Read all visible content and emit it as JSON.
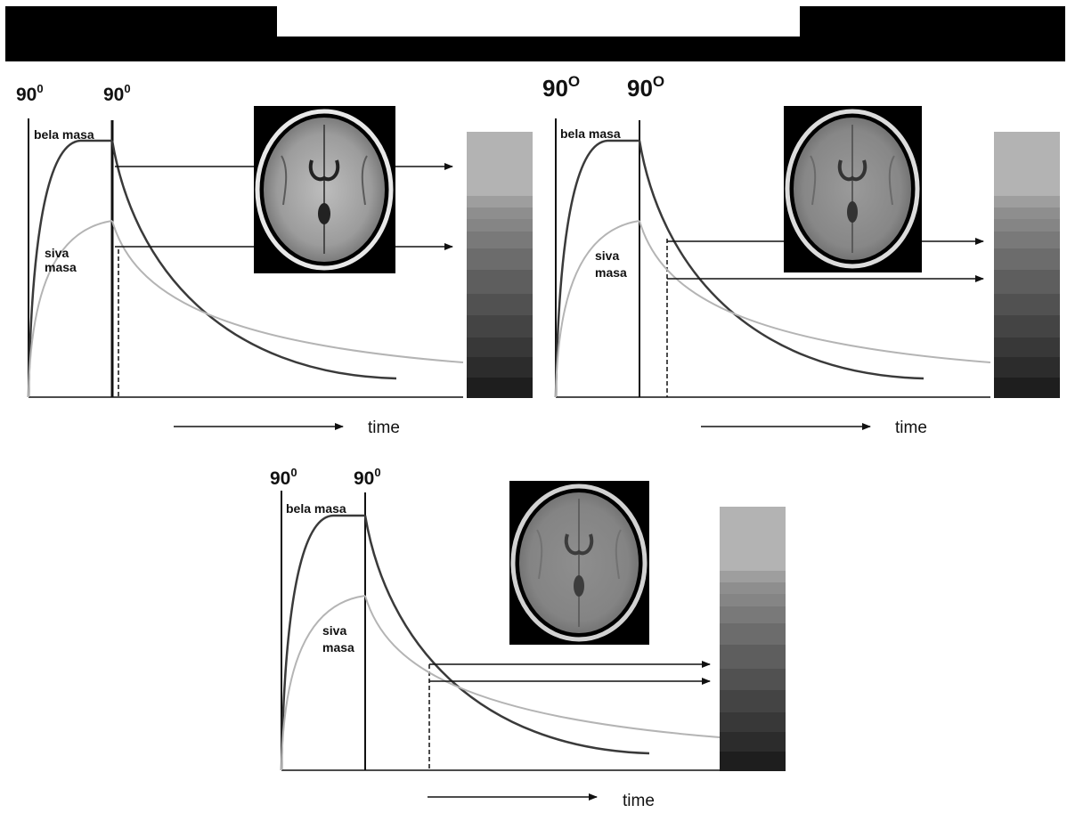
{
  "header": {
    "bar_color": "#000000",
    "window_color": "#ffffff"
  },
  "panels": [
    {
      "pulse_labels": [
        {
          "base": "90",
          "exp": "0"
        },
        {
          "base": "90",
          "exp": "0"
        }
      ],
      "tissues": {
        "white_matter": "bela masa",
        "gray_matter_line1": "siva",
        "gray_matter_line2": "masa"
      },
      "time_label": "time",
      "image_contrast": "high"
    },
    {
      "pulse_labels": [
        {
          "base": "90",
          "exp": "O"
        },
        {
          "base": "90",
          "exp": "O"
        }
      ],
      "tissues": {
        "white_matter": "bela masa",
        "gray_matter_line1": "siva",
        "gray_matter_line2": "masa"
      },
      "time_label": "time",
      "image_contrast": "medium"
    },
    {
      "pulse_labels": [
        {
          "base": "90",
          "exp": "0"
        },
        {
          "base": "90",
          "exp": "0"
        }
      ],
      "tissues": {
        "white_matter": "bela masa",
        "gray_matter_line1": "siva",
        "gray_matter_line2": "masa"
      },
      "time_label": "time",
      "image_contrast": "low"
    }
  ],
  "colors": {
    "white_matter_curve": "#3a3a3a",
    "gray_matter_curve": "#b4b4b4",
    "grayscale_top": "#b3b3b3",
    "grayscale_bottom": "#1e1e1e"
  }
}
